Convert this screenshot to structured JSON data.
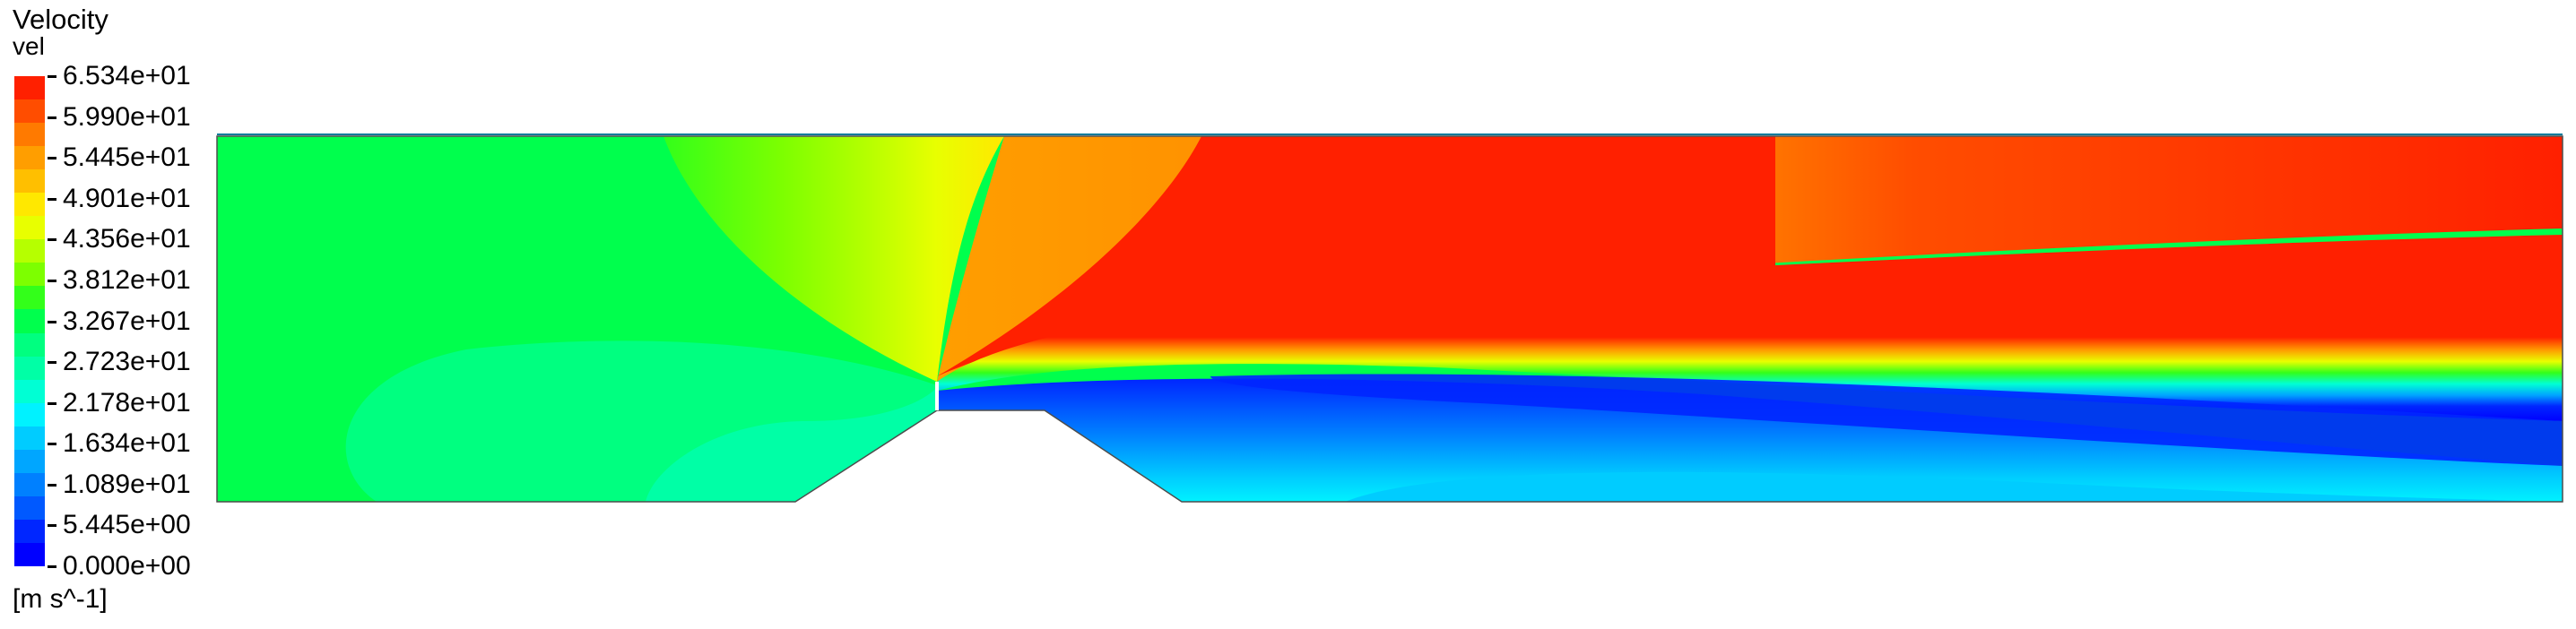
{
  "legend": {
    "title": "Velocity",
    "variable": "vel",
    "units": "[m s^-1]",
    "labels": [
      "6.534e+01",
      "5.990e+01",
      "5.445e+01",
      "4.901e+01",
      "4.356e+01",
      "3.812e+01",
      "3.267e+01",
      "2.723e+01",
      "2.178e+01",
      "1.634e+01",
      "1.089e+01",
      "5.445e+00",
      "0.000e+00"
    ],
    "colors": [
      "#ff2000",
      "#ff4d00",
      "#ff7a00",
      "#ff9e00",
      "#ffbf00",
      "#ffe800",
      "#e8ff00",
      "#b6ff00",
      "#7dff00",
      "#33ff1a",
      "#00ff4d",
      "#00ff80",
      "#00ffa6",
      "#00ffd4",
      "#00f2ff",
      "#00ccff",
      "#00a6ff",
      "#0080ff",
      "#0059ff",
      "#0026ff",
      "#0000ff"
    ],
    "range": [
      0.0,
      65.34
    ]
  },
  "contour": {
    "quantity": "Velocity",
    "units": "m s^-1",
    "colormap": "rainbow, 21 levels",
    "inlet_level": 0.43,
    "jet_core_level": 0.97,
    "recirculation_level": 0.05
  }
}
